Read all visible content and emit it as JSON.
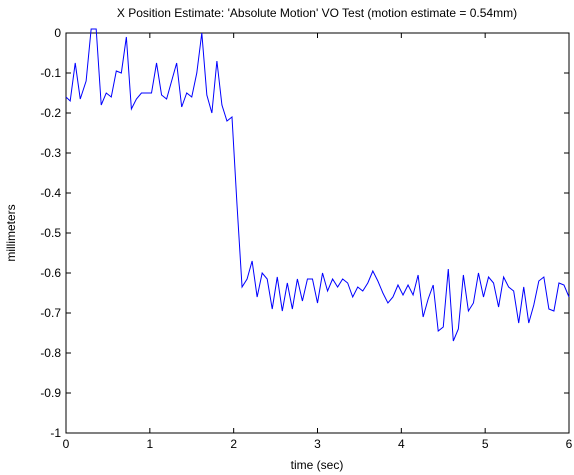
{
  "chart_data": {
    "type": "line",
    "title": "X Position Estimate: 'Absolute Motion' VO Test (motion estimate = 0.54mm)",
    "xlabel": "time (sec)",
    "ylabel": "millimeters",
    "xlim": [
      0,
      6
    ],
    "ylim": [
      -1,
      0
    ],
    "xticks": [
      0,
      1,
      2,
      3,
      4,
      5,
      6
    ],
    "xtick_labels": [
      "0",
      "1",
      "2",
      "3",
      "4",
      "5",
      "6"
    ],
    "yticks": [
      0,
      -0.1,
      -0.2,
      -0.3,
      -0.4,
      -0.5,
      -0.6,
      -0.7,
      -0.8,
      -0.9,
      -1
    ],
    "ytick_labels": [
      "0",
      "-0.1",
      "-0.2",
      "-0.3",
      "-0.4",
      "-0.5",
      "-0.6",
      "-0.7",
      "-0.8",
      "-0.9",
      "-1"
    ],
    "grid": false,
    "line_color": "#0000ff",
    "series": [
      {
        "x": [
          0,
          0.05,
          0.11,
          0.17,
          0.24,
          0.3,
          0.36,
          0.42,
          0.48,
          0.54,
          0.6,
          0.66,
          0.72,
          0.78,
          0.84,
          0.9,
          0.96,
          1.02,
          1.08,
          1.14,
          1.2,
          1.26,
          1.32,
          1.38,
          1.44,
          1.5,
          1.56,
          1.62,
          1.68,
          1.74,
          1.8,
          1.86,
          1.92,
          1.98,
          2.04,
          2.1,
          2.16,
          2.22,
          2.28,
          2.34,
          2.4,
          2.46,
          2.52,
          2.58,
          2.64,
          2.7,
          2.76,
          2.82,
          2.88,
          2.94,
          3.0,
          3.06,
          3.12,
          3.18,
          3.24,
          3.3,
          3.36,
          3.42,
          3.48,
          3.54,
          3.6,
          3.66,
          3.72,
          3.78,
          3.84,
          3.9,
          3.96,
          4.02,
          4.08,
          4.14,
          4.2,
          4.26,
          4.32,
          4.38,
          4.44,
          4.5,
          4.56,
          4.62,
          4.68,
          4.74,
          4.8,
          4.86,
          4.92,
          4.98,
          5.04,
          5.1,
          5.16,
          5.22,
          5.28,
          5.34,
          5.4,
          5.46,
          5.52,
          5.58,
          5.64,
          5.7,
          5.76,
          5.82,
          5.88,
          5.94,
          6.0
        ],
        "y": [
          -0.16,
          -0.17,
          -0.075,
          -0.165,
          -0.12,
          0.01,
          0.01,
          -0.18,
          -0.15,
          -0.16,
          -0.095,
          -0.1,
          -0.01,
          -0.19,
          -0.165,
          -0.15,
          -0.15,
          -0.15,
          -0.075,
          -0.155,
          -0.165,
          -0.12,
          -0.075,
          -0.185,
          -0.15,
          -0.16,
          -0.1,
          0.0,
          -0.155,
          -0.2,
          -0.07,
          -0.18,
          -0.22,
          -0.21,
          -0.43,
          -0.635,
          -0.615,
          -0.57,
          -0.66,
          -0.6,
          -0.615,
          -0.69,
          -0.61,
          -0.695,
          -0.625,
          -0.69,
          -0.615,
          -0.67,
          -0.615,
          -0.615,
          -0.675,
          -0.6,
          -0.645,
          -0.615,
          -0.635,
          -0.615,
          -0.625,
          -0.66,
          -0.635,
          -0.645,
          -0.625,
          -0.595,
          -0.62,
          -0.65,
          -0.675,
          -0.66,
          -0.63,
          -0.655,
          -0.63,
          -0.655,
          -0.605,
          -0.71,
          -0.665,
          -0.63,
          -0.745,
          -0.735,
          -0.59,
          -0.77,
          -0.74,
          -0.605,
          -0.695,
          -0.675,
          -0.6,
          -0.66,
          -0.61,
          -0.625,
          -0.685,
          -0.61,
          -0.635,
          -0.645,
          -0.725,
          -0.635,
          -0.725,
          -0.68,
          -0.62,
          -0.61,
          -0.69,
          -0.695,
          -0.625,
          -0.63,
          -0.66
        ]
      }
    ]
  }
}
